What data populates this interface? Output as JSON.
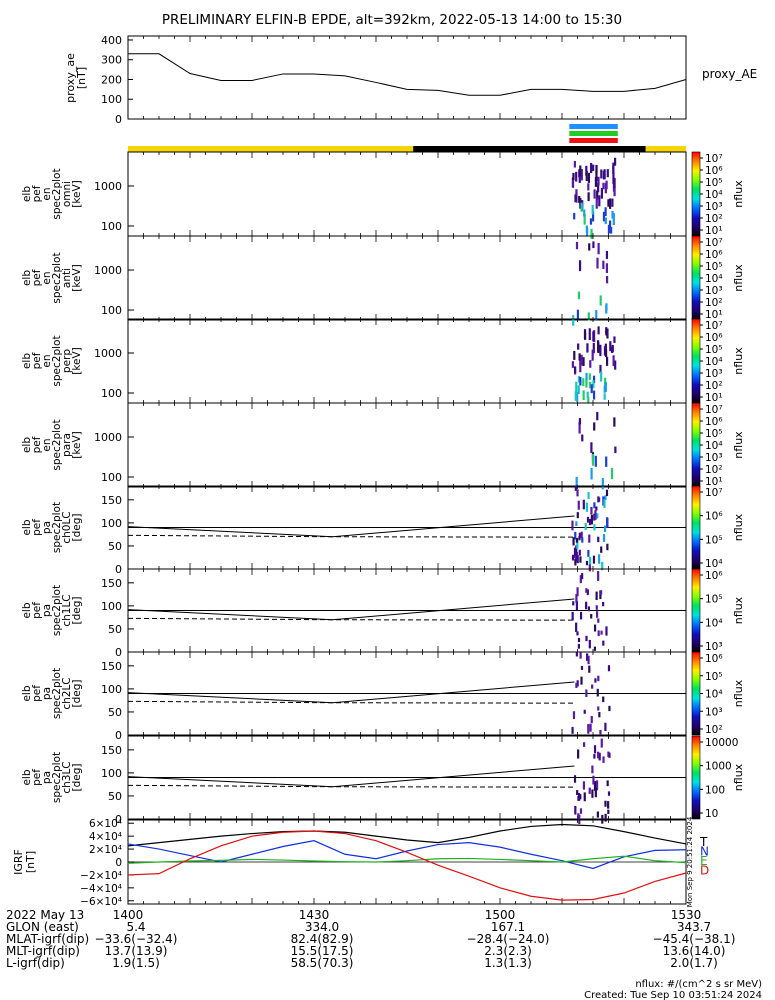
{
  "title": "PRELIMINARY ELFIN-B EPDE, alt=392km, 2022-05-13 14:00 to 15:30",
  "colors": {
    "axis": "#000000",
    "sunlit": "#f5d400",
    "shadow": "#000000",
    "igrf_T": "#000000",
    "igrf_N": "#1030e0",
    "igrf_E": "#20b020",
    "igrf_D": "#e01010"
  },
  "ae_panel": {
    "ylabel": "proxy_ae\n[nT]",
    "yticks": [
      "400",
      "300",
      "200",
      "100",
      "0"
    ],
    "legend": "proxy_AE"
  },
  "indicator_bars": [
    "#1e90ff",
    "#22cc22",
    "#ee1111"
  ],
  "spec_panels": [
    {
      "ylabel": [
        "elb",
        "pef",
        "en",
        "spec2plot",
        "omni",
        "[keV]"
      ],
      "yticks": [
        "1000",
        "100"
      ],
      "cb_ticks": [
        "10⁷",
        "10⁶",
        "10⁵",
        "10⁴",
        "10³",
        "10²",
        "10¹"
      ],
      "cb_label": "nflux"
    },
    {
      "ylabel": [
        "elb",
        "pef",
        "en",
        "spec2plot",
        "anti",
        "[keV]"
      ],
      "yticks": [
        "1000",
        "100"
      ],
      "cb_ticks": [
        "10⁷",
        "10⁶",
        "10⁵",
        "10⁴",
        "10³",
        "10²",
        "10¹"
      ],
      "cb_label": "nflux"
    },
    {
      "ylabel": [
        "elb",
        "pef",
        "en",
        "spec2plot",
        "perp",
        "[keV]"
      ],
      "yticks": [
        "1000",
        "100"
      ],
      "cb_ticks": [
        "10⁷",
        "10⁶",
        "10⁵",
        "10⁴",
        "10³",
        "10²",
        "10¹"
      ],
      "cb_label": "nflux"
    },
    {
      "ylabel": [
        "elb",
        "pef",
        "en",
        "spec2plot",
        "para",
        "[keV]"
      ],
      "yticks": [
        "1000",
        "100"
      ],
      "cb_ticks": [
        "10⁷",
        "10⁶",
        "10⁵",
        "10⁴",
        "10³",
        "10²",
        "10¹"
      ],
      "cb_label": "nflux"
    }
  ],
  "pa_panels": [
    {
      "ylabel": [
        "elb",
        "pef",
        "pa",
        "spec2plot",
        "ch0LC",
        "[deg]"
      ],
      "yticks": [
        "150",
        "100",
        "50",
        "0"
      ],
      "cb_ticks": [
        "10⁷",
        "10⁶",
        "10⁵",
        "10⁴"
      ],
      "cb_label": "nflux"
    },
    {
      "ylabel": [
        "elb",
        "pef",
        "pa",
        "spec2plot",
        "ch1LC",
        "[deg]"
      ],
      "yticks": [
        "150",
        "100",
        "50",
        "0"
      ],
      "cb_ticks": [
        "10⁶",
        "10⁵",
        "10⁴",
        "10³"
      ],
      "cb_label": "nflux"
    },
    {
      "ylabel": [
        "elb",
        "pef",
        "pa",
        "spec2plot",
        "ch2LC",
        "[deg]"
      ],
      "yticks": [
        "150",
        "100",
        "50",
        "0"
      ],
      "cb_ticks": [
        "10⁶",
        "10⁵",
        "10⁴",
        "10³",
        "10²"
      ],
      "cb_label": "nflux"
    },
    {
      "ylabel": [
        "elb",
        "pef",
        "pa",
        "spec2plot",
        "ch3LC",
        "[deg]"
      ],
      "yticks": [
        "150",
        "100",
        "50",
        "0"
      ],
      "cb_ticks": [
        "10000",
        "1000",
        "100",
        "10"
      ],
      "cb_label": "nflux"
    }
  ],
  "igrf_panel": {
    "ylabel": [
      "IGRF",
      "[nT]"
    ],
    "yticks": [
      "6×10⁴",
      "4×10⁴",
      "2×10⁴",
      "0",
      "−2×10⁴",
      "−4×10⁴",
      "−6×10⁴"
    ],
    "legend": [
      "T",
      "N",
      "E",
      "D"
    ],
    "stamp": "Mon Sep 9 20:51:24 2024"
  },
  "footer": {
    "row_labels": [
      "2022 May 13",
      "GLON (east)",
      "MLAT-igrf(dip)",
      "MLT-igrf(dip)",
      "L-igrf(dip)"
    ],
    "columns": [
      {
        "tick": "1400",
        "values": [
          "5.4",
          "−33.6(−32.4)",
          "13.7(13.9)",
          "1.9(1.5)"
        ]
      },
      {
        "tick": "1430",
        "values": [
          "334.0",
          "82.4(82.9)",
          "15.5(17.5)",
          "58.5(70.3)"
        ]
      },
      {
        "tick": "1500",
        "values": [
          "167.1",
          "−28.4(−24.0)",
          "2.3(2.3)",
          "1.3(1.3)"
        ]
      },
      {
        "tick": "1530",
        "values": [
          "343.7",
          "−45.4(−38.1)",
          "13.6(14.0)",
          "2.0(1.7)"
        ]
      }
    ],
    "units_note": "nflux: #/(cm^2 s sr MeV)",
    "created": "Created: Tue Sep 10 03:51:24 2024"
  },
  "chart_data": {
    "type": "line",
    "title": "PRELIMINARY ELFIN-B EPDE, alt=392km, 2022-05-13 14:00 to 15:30",
    "x_ticks": [
      "1400",
      "1430",
      "1500",
      "1530"
    ],
    "proxy_ae": {
      "ylim": [
        0,
        420
      ],
      "x_min": [
        0,
        5,
        10,
        15,
        20,
        25,
        30,
        35,
        40,
        45,
        50,
        55,
        60,
        65,
        70,
        75,
        80,
        85,
        90
      ],
      "values": [
        330,
        330,
        230,
        195,
        195,
        228,
        228,
        218,
        185,
        150,
        145,
        120,
        120,
        150,
        150,
        140,
        140,
        155,
        200
      ]
    },
    "sunlit_shadow": [
      {
        "from_min": 0,
        "to_min": 46,
        "state": "sunlit"
      },
      {
        "from_min": 46,
        "to_min": 83.5,
        "state": "shadow"
      },
      {
        "from_min": 83.5,
        "to_min": 90,
        "state": "sunlit"
      }
    ],
    "activity_window_min": [
      71.5,
      79
    ],
    "pa_lines": {
      "x_min": [
        0,
        33,
        72
      ],
      "solid_deg": [
        92,
        70,
        115
      ],
      "dashed_deg": [
        73,
        70,
        69
      ]
    },
    "igrf": {
      "ylim": [
        -65000,
        65000
      ],
      "x_min": [
        0,
        5,
        10,
        15,
        20,
        25,
        30,
        35,
        40,
        45,
        50,
        55,
        60,
        65,
        70,
        75,
        80,
        85,
        90
      ],
      "series": [
        {
          "name": "T",
          "values": [
            25000,
            30000,
            35000,
            40000,
            44000,
            47000,
            48000,
            46000,
            40000,
            34000,
            30000,
            38000,
            48000,
            55000,
            58000,
            56000,
            47000,
            37000,
            28000
          ]
        },
        {
          "name": "N",
          "values": [
            28000,
            20000,
            10000,
            0,
            12000,
            24000,
            33000,
            12000,
            5000,
            17000,
            27000,
            30000,
            23000,
            12000,
            2000,
            -10000,
            8000,
            18000,
            19000
          ]
        },
        {
          "name": "E",
          "values": [
            -2000,
            0,
            1500,
            2500,
            4000,
            3000,
            1500,
            500,
            0,
            2000,
            5000,
            5500,
            4000,
            2000,
            0,
            5000,
            9000,
            2000,
            -1000
          ]
        },
        {
          "name": "D",
          "values": [
            -20000,
            -18000,
            5000,
            25000,
            40000,
            46000,
            48000,
            44000,
            33000,
            15000,
            -5000,
            -22000,
            -40000,
            -53000,
            -59000,
            -58000,
            -48000,
            -30000,
            -17000
          ]
        }
      ]
    }
  }
}
